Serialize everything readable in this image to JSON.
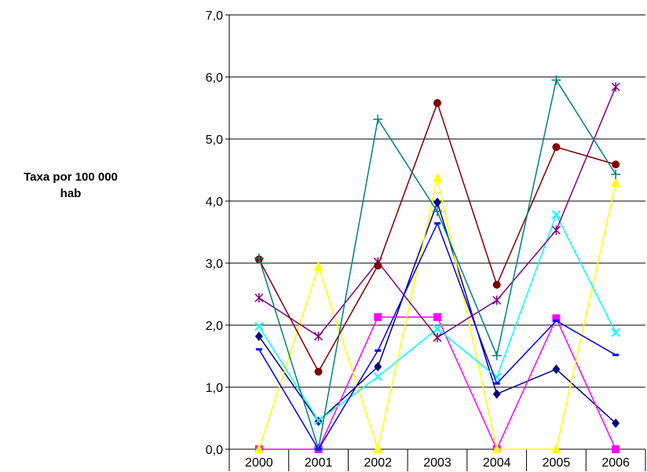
{
  "chart_data": {
    "type": "line",
    "title": "",
    "xlabel": "",
    "ylabel": "Taxa por 100 000 hab",
    "ylim": [
      0,
      7
    ],
    "y_ticks": [
      "0,0",
      "1,0",
      "2,0",
      "3,0",
      "4,0",
      "5,0",
      "6,0",
      "7,0"
    ],
    "grid": true,
    "legend": "none",
    "categories": [
      "2000",
      "2001",
      "2002",
      "2003",
      "2004",
      "2005",
      "2006"
    ],
    "series": [
      {
        "color": "#000080",
        "marker": "diamond",
        "values": [
          1.82,
          0.45,
          1.33,
          3.98,
          0.89,
          1.29,
          0.42
        ]
      },
      {
        "color": "#ff00ff",
        "marker": "square",
        "values": [
          0.0,
          0.0,
          2.13,
          2.13,
          0.0,
          2.11,
          0.0
        ]
      },
      {
        "color": "#ffff00",
        "marker": "triangle",
        "values": [
          0.0,
          2.94,
          0.0,
          4.37,
          0.0,
          0.0,
          4.29
        ]
      },
      {
        "color": "#00ffff",
        "marker": "x",
        "values": [
          1.98,
          0.46,
          1.17,
          1.94,
          1.16,
          3.78,
          1.88
        ]
      },
      {
        "color": "#800080",
        "marker": "star",
        "values": [
          2.44,
          1.82,
          3.02,
          1.8,
          2.4,
          3.53,
          5.84
        ]
      },
      {
        "color": "#800000",
        "marker": "circle",
        "values": [
          3.06,
          1.25,
          2.96,
          5.58,
          2.65,
          4.87,
          4.59
        ]
      },
      {
        "color": "#008080",
        "marker": "plus",
        "values": [
          3.08,
          0.01,
          5.32,
          3.83,
          1.51,
          5.95,
          4.43
        ]
      },
      {
        "color": "#0000ff",
        "marker": "dash",
        "values": [
          1.61,
          0.0,
          1.59,
          3.64,
          1.06,
          2.07,
          1.52
        ]
      }
    ]
  }
}
